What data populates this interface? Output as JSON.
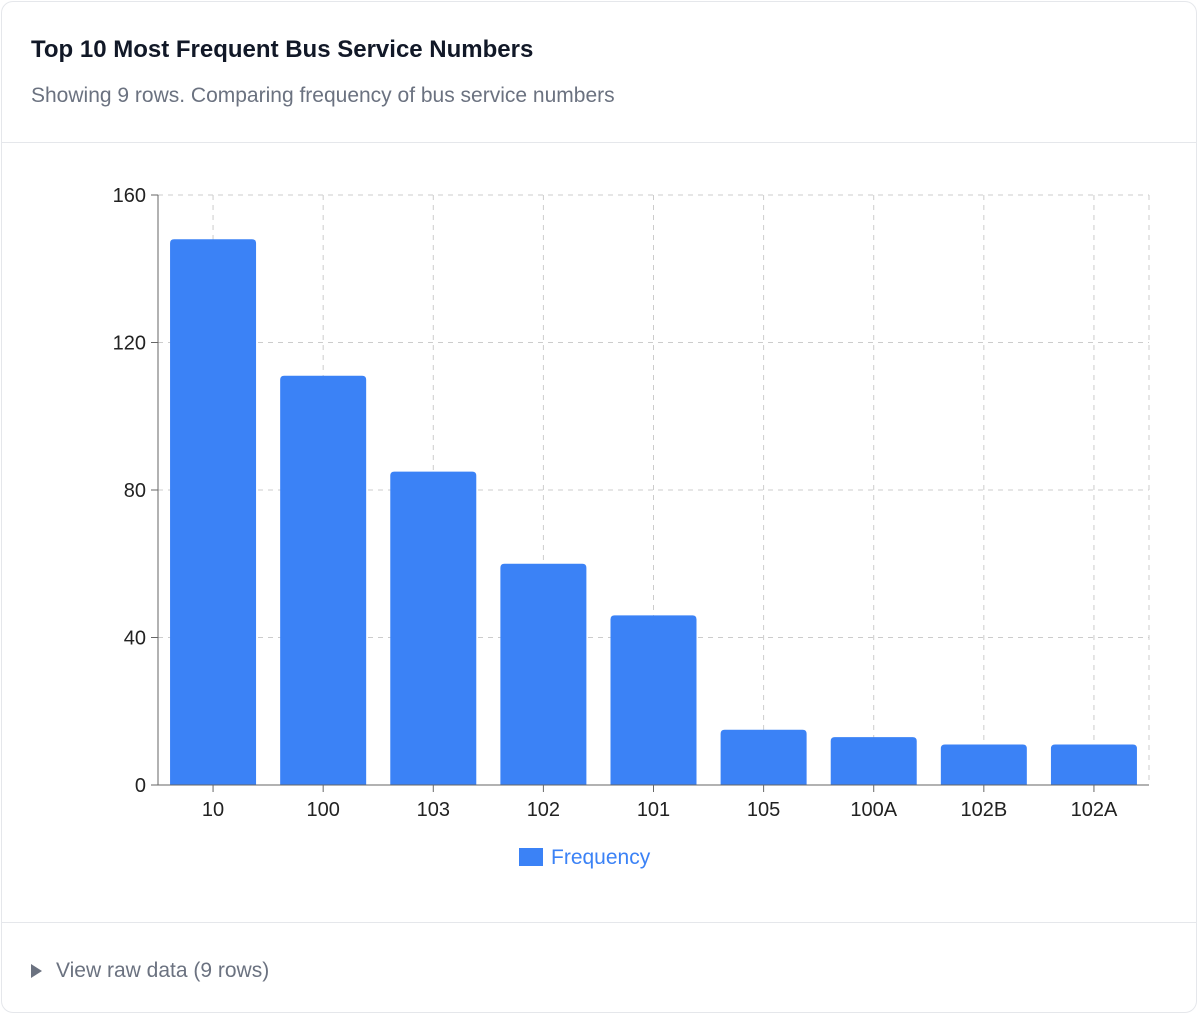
{
  "header": {
    "title": "Top 10 Most Frequent Bus Service Numbers",
    "subtitle": "Showing 9 rows. Comparing frequency of bus service numbers"
  },
  "footer": {
    "toggle_label": "View raw data (9 rows)",
    "toggle_icon": "triangle-right-icon"
  },
  "chart_data": {
    "type": "bar",
    "title": "",
    "xlabel": "",
    "ylabel": "",
    "categories": [
      "10",
      "100",
      "103",
      "102",
      "101",
      "105",
      "100A",
      "102B",
      "102A"
    ],
    "series": [
      {
        "name": "Frequency",
        "values": [
          148,
          111,
          85,
          60,
          46,
          15,
          13,
          11,
          11
        ],
        "color": "#3b82f6"
      }
    ],
    "ylim": [
      0,
      160
    ],
    "yticks": [
      0,
      40,
      80,
      120,
      160
    ],
    "grid": true,
    "legend": "bottom"
  }
}
